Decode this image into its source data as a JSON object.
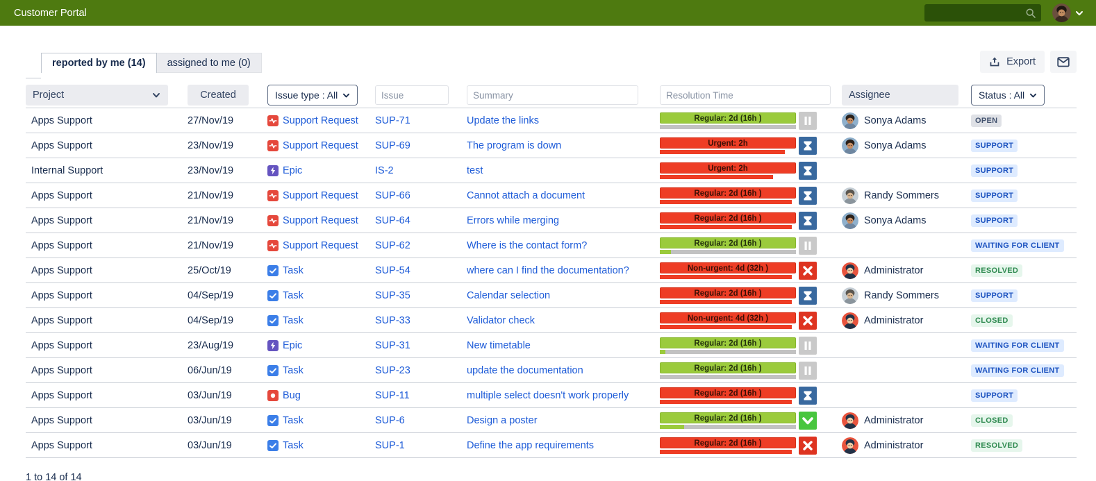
{
  "header": {
    "title": "Customer Portal",
    "search_placeholder": "",
    "search_icon": "search-icon",
    "user_icon": "user-avatar",
    "chevron_icon": "chevron-down-icon"
  },
  "tabs": [
    {
      "label": "reported by me (14)",
      "active": true
    },
    {
      "label": "assigned to me (0)",
      "active": false
    }
  ],
  "toolbar": {
    "export_label": "Export",
    "export_icon": "export-icon",
    "mail_icon": "envelope-icon"
  },
  "filters": {
    "project_label": "Project",
    "created_label": "Created",
    "issue_type_label": "Issue type : All",
    "issue_placeholder": "Issue",
    "summary_placeholder": "Summary",
    "resolution_placeholder": "Resolution Time",
    "assignee_label": "Assignee",
    "status_label": "Status : All"
  },
  "colors": {
    "topbar": "#4E7A10",
    "search_bg": "#2B5108",
    "link": "#1D5BD8",
    "sla_green": "#9BCB3C",
    "sla_red": "#EE3D25",
    "sla_gray": "#C2C2C2",
    "icon_pause_bg": "#C9C9C9",
    "icon_hourglass_bg": "#39699F",
    "icon_fail_bg": "#DE3421",
    "icon_done_bg": "#48C63E",
    "type_support": "#E5483C",
    "type_epic": "#6554C0",
    "type_task": "#3B7EE8",
    "type_bug": "#E5483C"
  },
  "table": {
    "rows": [
      {
        "project": "Apps Support",
        "created": "27/Nov/19",
        "type": {
          "label": "Support Request",
          "icon": "support-request-icon"
        },
        "issue": "SUP-71",
        "summary": "Update the links",
        "sla": {
          "label": "Regular: 2d (16h )",
          "tone": "green",
          "progress": [
            {
              "color": "gray",
              "pct": 100
            }
          ],
          "state_icon": "pause-icon"
        },
        "assignee": {
          "name": "Sonya Adams",
          "avatar": "sonya"
        },
        "status": {
          "label": "OPEN",
          "tone": "gray"
        }
      },
      {
        "project": "Apps Support",
        "created": "23/Nov/19",
        "type": {
          "label": "Support Request",
          "icon": "support-request-icon"
        },
        "issue": "SUP-69",
        "summary": "The program is down",
        "sla": {
          "label": "Urgent: 2h",
          "tone": "red",
          "progress": [
            {
              "color": "red",
              "pct": 92
            }
          ],
          "state_icon": "hourglass-icon"
        },
        "assignee": {
          "name": "Sonya Adams",
          "avatar": "sonya"
        },
        "status": {
          "label": "SUPPORT",
          "tone": "blue"
        }
      },
      {
        "project": "Internal Support",
        "created": "23/Nov/19",
        "type": {
          "label": "Epic",
          "icon": "epic-icon"
        },
        "issue": "IS-2",
        "summary": "test",
        "sla": {
          "label": "Urgent: 2h",
          "tone": "red",
          "progress": [
            {
              "color": "red",
              "pct": 83
            }
          ],
          "state_icon": "hourglass-icon"
        },
        "assignee": null,
        "status": {
          "label": "SUPPORT",
          "tone": "blue"
        }
      },
      {
        "project": "Apps Support",
        "created": "21/Nov/19",
        "type": {
          "label": "Support Request",
          "icon": "support-request-icon"
        },
        "issue": "SUP-66",
        "summary": "Cannot attach a document",
        "sla": {
          "label": "Regular: 2d (16h )",
          "tone": "red",
          "progress": [
            {
              "color": "red",
              "pct": 97
            }
          ],
          "state_icon": "hourglass-icon"
        },
        "assignee": {
          "name": "Randy Sommers",
          "avatar": "randy"
        },
        "status": {
          "label": "SUPPORT",
          "tone": "blue"
        }
      },
      {
        "project": "Apps Support",
        "created": "21/Nov/19",
        "type": {
          "label": "Support Request",
          "icon": "support-request-icon"
        },
        "issue": "SUP-64",
        "summary": "Errors while merging",
        "sla": {
          "label": "Regular: 2d (16h )",
          "tone": "red",
          "progress": [
            {
              "color": "red",
              "pct": 97
            }
          ],
          "state_icon": "hourglass-icon"
        },
        "assignee": {
          "name": "Sonya Adams",
          "avatar": "sonya"
        },
        "status": {
          "label": "SUPPORT",
          "tone": "blue"
        }
      },
      {
        "project": "Apps Support",
        "created": "21/Nov/19",
        "type": {
          "label": "Support Request",
          "icon": "support-request-icon"
        },
        "issue": "SUP-62",
        "summary": "Where is the contact form?",
        "sla": {
          "label": "Regular: 2d (16h )",
          "tone": "green",
          "progress": [
            {
              "color": "green",
              "pct": 8
            },
            {
              "color": "gray",
              "pct": 92
            }
          ],
          "state_icon": "pause-icon"
        },
        "assignee": null,
        "status": {
          "label": "WAITING FOR CLIENT",
          "tone": "blue"
        }
      },
      {
        "project": "Apps Support",
        "created": "25/Oct/19",
        "type": {
          "label": "Task",
          "icon": "task-icon"
        },
        "issue": "SUP-54",
        "summary": "where can I find the documentation?",
        "sla": {
          "label": "Non-urgent: 4d (32h )",
          "tone": "red",
          "progress": [
            {
              "color": "red",
              "pct": 97
            }
          ],
          "state_icon": "x-icon"
        },
        "assignee": {
          "name": "Administrator",
          "avatar": "admin"
        },
        "status": {
          "label": "RESOLVED",
          "tone": "green"
        }
      },
      {
        "project": "Apps Support",
        "created": "04/Sep/19",
        "type": {
          "label": "Task",
          "icon": "task-icon"
        },
        "issue": "SUP-35",
        "summary": "Calendar selection",
        "sla": {
          "label": "Regular: 2d (16h )",
          "tone": "red",
          "progress": [
            {
              "color": "red",
              "pct": 97
            }
          ],
          "state_icon": "hourglass-icon"
        },
        "assignee": {
          "name": "Randy Sommers",
          "avatar": "randy"
        },
        "status": {
          "label": "SUPPORT",
          "tone": "blue"
        }
      },
      {
        "project": "Apps Support",
        "created": "04/Sep/19",
        "type": {
          "label": "Task",
          "icon": "task-icon"
        },
        "issue": "SUP-33",
        "summary": "Validator check",
        "sla": {
          "label": "Non-urgent: 4d (32h )",
          "tone": "red",
          "progress": [
            {
              "color": "red",
              "pct": 97
            }
          ],
          "state_icon": "x-icon"
        },
        "assignee": {
          "name": "Administrator",
          "avatar": "admin"
        },
        "status": {
          "label": "CLOSED",
          "tone": "green"
        }
      },
      {
        "project": "Apps Support",
        "created": "23/Aug/19",
        "type": {
          "label": "Epic",
          "icon": "epic-icon"
        },
        "issue": "SUP-31",
        "summary": "New timetable",
        "sla": {
          "label": "Regular: 2d (16h )",
          "tone": "green",
          "progress": [
            {
              "color": "green",
              "pct": 4
            },
            {
              "color": "gray",
              "pct": 96
            }
          ],
          "state_icon": "pause-icon"
        },
        "assignee": null,
        "status": {
          "label": "WAITING FOR CLIENT",
          "tone": "blue"
        }
      },
      {
        "project": "Apps Support",
        "created": "06/Jun/19",
        "type": {
          "label": "Task",
          "icon": "task-icon"
        },
        "issue": "SUP-23",
        "summary": "update the documentation",
        "sla": {
          "label": "Regular: 2d (16h )",
          "tone": "green",
          "progress": [
            {
              "color": "gray",
              "pct": 100
            }
          ],
          "state_icon": "pause-icon"
        },
        "assignee": null,
        "status": {
          "label": "WAITING FOR CLIENT",
          "tone": "blue"
        }
      },
      {
        "project": "Apps Support",
        "created": "03/Jun/19",
        "type": {
          "label": "Bug",
          "icon": "bug-icon"
        },
        "issue": "SUP-11",
        "summary": "multiple select doesn't work properly",
        "sla": {
          "label": "Regular: 2d (16h )",
          "tone": "red",
          "progress": [
            {
              "color": "red",
              "pct": 97
            }
          ],
          "state_icon": "hourglass-icon"
        },
        "assignee": null,
        "status": {
          "label": "SUPPORT",
          "tone": "blue"
        }
      },
      {
        "project": "Apps Support",
        "created": "03/Jun/19",
        "type": {
          "label": "Task",
          "icon": "task-icon"
        },
        "issue": "SUP-6",
        "summary": "Design a poster",
        "sla": {
          "label": "Regular: 2d (16h )",
          "tone": "green",
          "progress": [
            {
              "color": "green",
              "pct": 18
            },
            {
              "color": "gray",
              "pct": 82
            }
          ],
          "state_icon": "check-icon"
        },
        "assignee": {
          "name": "Administrator",
          "avatar": "admin"
        },
        "status": {
          "label": "CLOSED",
          "tone": "green"
        }
      },
      {
        "project": "Apps Support",
        "created": "03/Jun/19",
        "type": {
          "label": "Task",
          "icon": "task-icon"
        },
        "issue": "SUP-1",
        "summary": "Define the app requirements",
        "sla": {
          "label": "Regular: 2d (16h )",
          "tone": "red",
          "progress": [
            {
              "color": "red",
              "pct": 97
            }
          ],
          "state_icon": "x-icon"
        },
        "assignee": {
          "name": "Administrator",
          "avatar": "admin"
        },
        "status": {
          "label": "RESOLVED",
          "tone": "green"
        }
      }
    ]
  },
  "footer": {
    "pagination": "1 to 14 of 14"
  }
}
